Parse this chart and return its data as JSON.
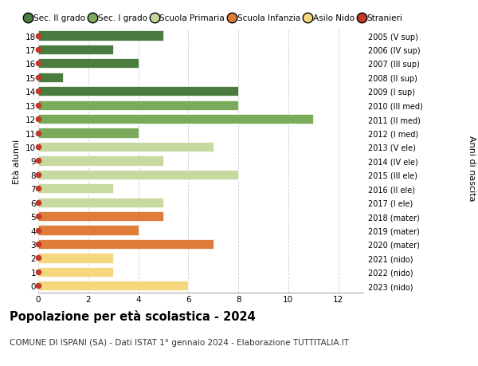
{
  "ages": [
    0,
    1,
    2,
    3,
    4,
    5,
    6,
    7,
    8,
    9,
    10,
    11,
    12,
    13,
    14,
    15,
    16,
    17,
    18
  ],
  "right_labels": [
    "2023 (nido)",
    "2022 (nido)",
    "2021 (nido)",
    "2020 (mater)",
    "2019 (mater)",
    "2018 (mater)",
    "2017 (I ele)",
    "2016 (II ele)",
    "2015 (III ele)",
    "2014 (IV ele)",
    "2013 (V ele)",
    "2012 (I med)",
    "2011 (II med)",
    "2010 (III med)",
    "2009 (I sup)",
    "2008 (II sup)",
    "2007 (III sup)",
    "2006 (IV sup)",
    "2005 (V sup)"
  ],
  "values": [
    6,
    3,
    3,
    7,
    4,
    5,
    5,
    3,
    8,
    5,
    7,
    4,
    11,
    8,
    8,
    1,
    4,
    3,
    5
  ],
  "colors": [
    "#f5d87e",
    "#f5d87e",
    "#f5d87e",
    "#e07c3a",
    "#e07c3a",
    "#e07c3a",
    "#c8d9a0",
    "#c8d9a0",
    "#c8d9a0",
    "#c8d9a0",
    "#c8d9a0",
    "#7aab5a",
    "#7aab5a",
    "#7aab5a",
    "#4a7c40",
    "#4a7c40",
    "#4a7c40",
    "#4a7c40",
    "#4a7c40"
  ],
  "legend_labels": [
    "Sec. II grado",
    "Sec. I grado",
    "Scuola Primaria",
    "Scuola Infanzia",
    "Asilo Nido",
    "Stranieri"
  ],
  "legend_colors": [
    "#4a7c40",
    "#7aab5a",
    "#c8d9a0",
    "#e07c3a",
    "#f5d87e",
    "#c0392b"
  ],
  "stranieri_color": "#c0392b",
  "title": "Popolazione per età scolastica - 2024",
  "subtitle": "COMUNE DI ISPANI (SA) - Dati ISTAT 1° gennaio 2024 - Elaborazione TUTTITALIA.IT",
  "anni_label": "Anni di nascita",
  "ylabel": "Età alunni",
  "xlim_max": 13,
  "xticks": [
    0,
    2,
    4,
    6,
    8,
    10,
    12
  ],
  "background_color": "#ffffff",
  "grid_color": "#cccccc",
  "bar_height": 0.7
}
